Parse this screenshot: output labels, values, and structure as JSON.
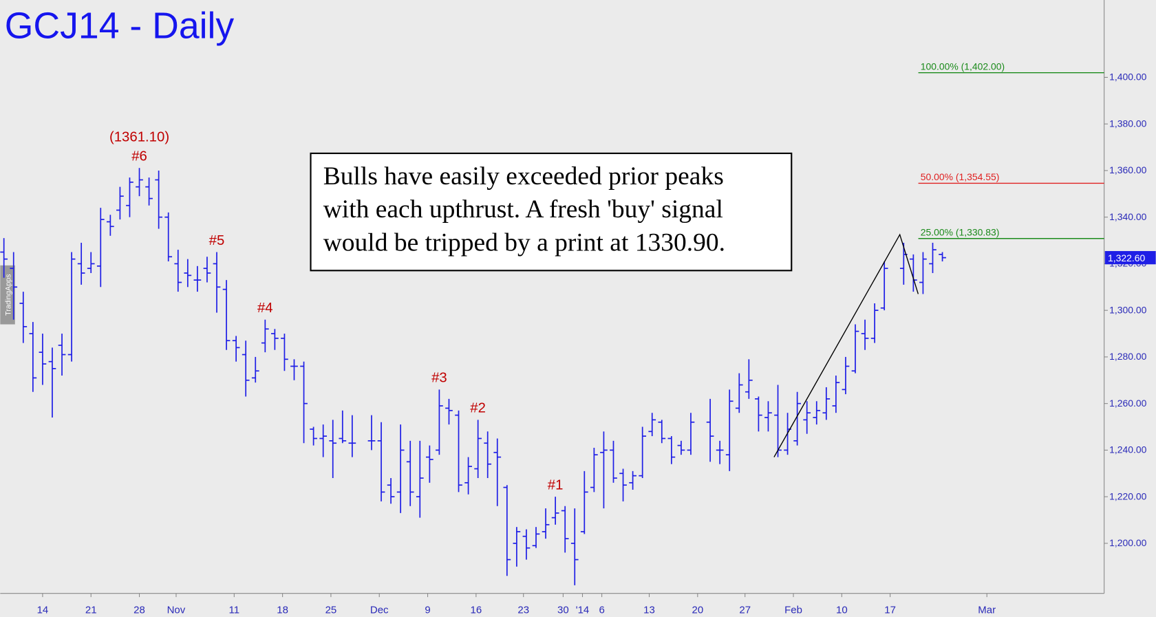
{
  "chart_data": {
    "type": "ohlc",
    "title": "GCJ14 - Daily",
    "watermark": "TradingApps",
    "x": [
      0,
      1,
      2,
      3,
      4,
      5,
      6,
      7,
      8,
      9,
      10,
      11,
      12,
      13,
      14,
      15,
      16,
      17,
      18,
      19,
      20,
      21,
      22,
      23,
      24,
      25,
      26,
      27,
      28,
      29,
      30,
      31,
      32,
      33,
      34,
      35,
      36,
      38,
      39,
      40,
      41,
      42,
      43,
      44,
      45,
      46,
      47,
      48,
      49,
      50,
      51,
      52,
      53,
      54,
      55,
      56,
      57,
      58,
      59,
      60,
      61,
      62,
      63,
      64,
      65,
      66,
      67,
      68,
      69,
      70,
      71,
      73,
      74,
      75,
      76,
      77,
      78,
      79,
      80,
      81,
      82,
      83,
      84,
      85,
      86,
      87,
      88,
      89,
      90,
      91,
      93,
      94,
      95,
      96,
      97
    ],
    "open": [
      1325,
      1318,
      1303,
      1290,
      1282,
      1278,
      1285,
      1281,
      1320,
      1318,
      1319,
      1338,
      1343,
      1345,
      1353,
      1353,
      1356,
      1340,
      1320,
      1316,
      1313,
      1318,
      1320,
      1309,
      1287,
      1281,
      1271,
      1286,
      1290,
      1288,
      1276,
      1276,
      1249,
      1245,
      1244,
      1245,
      1243,
      1244,
      1244,
      1225,
      1222,
      1235,
      1220,
      1237,
      1240,
      1258,
      1255,
      1226,
      1232,
      1243,
      1239,
      1224,
      1200,
      1203,
      1199,
      1205,
      1211,
      1214,
      1200,
      1205,
      1224,
      1239,
      1240,
      1230,
      1226,
      1229,
      1248,
      1252,
      1245,
      1242,
      1240,
      1252,
      1240,
      1238,
      1258,
      1265,
      1262,
      1254,
      1255,
      1240,
      1244,
      1253,
      1254,
      1256,
      1259,
      1266,
      1274,
      1290,
      1288,
      1301,
      1318,
      1322,
      1312,
      1320,
      1324
    ],
    "high": [
      1331,
      1325,
      1308,
      1295,
      1290,
      1284,
      1290,
      1325,
      1329,
      1325,
      1344,
      1341,
      1353,
      1357,
      1361.1,
      1357,
      1360,
      1342,
      1326,
      1322,
      1319,
      1323,
      1325,
      1313,
      1289,
      1287,
      1280,
      1296,
      1292,
      1290,
      1279,
      1278,
      1250,
      1251,
      1253,
      1257,
      1255,
      1255,
      1252,
      1228,
      1251,
      1244,
      1244,
      1242,
      1266,
      1262,
      1257,
      1237,
      1253,
      1248,
      1245,
      1225,
      1207,
      1206,
      1207,
      1215,
      1220,
      1216,
      1215,
      1231,
      1241,
      1248,
      1244,
      1232,
      1231,
      1250,
      1256,
      1253,
      1246,
      1244,
      1256,
      1262,
      1244,
      1266,
      1273,
      1279,
      1263,
      1261,
      1268,
      1256,
      1265,
      1261,
      1261,
      1267,
      1272,
      1280,
      1294,
      1296,
      1303,
      1321,
      1329,
      1324,
      1325,
      1329,
      1325
    ],
    "low": [
      1314,
      1296,
      1286,
      1265,
      1268,
      1254,
      1272,
      1278,
      1311,
      1316,
      1310,
      1332,
      1339,
      1340,
      1349,
      1345,
      1335,
      1321,
      1308,
      1310,
      1308,
      1312,
      1299,
      1283,
      1278,
      1263,
      1269,
      1282,
      1283,
      1274,
      1270,
      1243,
      1242,
      1237,
      1228,
      1243,
      1237,
      1240,
      1218,
      1217,
      1213,
      1216,
      1211,
      1226,
      1238,
      1251,
      1222,
      1221,
      1228,
      1228,
      1216,
      1186,
      1190,
      1193,
      1198,
      1202,
      1208,
      1196,
      1182,
      1204,
      1222,
      1215,
      1226,
      1218,
      1223,
      1228,
      1246,
      1243,
      1234,
      1238,
      1238,
      1235,
      1234,
      1231,
      1256,
      1262,
      1248,
      1248,
      1237,
      1238,
      1242,
      1247,
      1251,
      1253,
      1256,
      1264,
      1273,
      1283,
      1286,
      1300,
      1311,
      1308,
      1307,
      1316,
      1321
    ],
    "close": [
      1322,
      1310,
      1293,
      1271,
      1277,
      1275,
      1281,
      1322,
      1316,
      1320,
      1339,
      1336,
      1349,
      1355,
      1356,
      1348,
      1340,
      1323,
      1312,
      1315,
      1313,
      1316,
      1310,
      1287,
      1284,
      1270,
      1274,
      1292,
      1288,
      1279,
      1276,
      1260,
      1245,
      1246,
      1243,
      1244,
      1243,
      1244,
      1222,
      1220,
      1240,
      1222,
      1228,
      1236,
      1259,
      1257,
      1225,
      1233,
      1245,
      1234,
      1237,
      1193,
      1205,
      1198,
      1204,
      1208,
      1213,
      1202,
      1193,
      1222,
      1238,
      1240,
      1228,
      1225,
      1229,
      1246,
      1253,
      1245,
      1237,
      1240,
      1252,
      1246,
      1240,
      1261,
      1268,
      1270,
      1255,
      1256,
      1240,
      1249,
      1260,
      1256,
      1257,
      1262,
      1269,
      1276,
      1291,
      1288,
      1300,
      1318,
      1324,
      1313,
      1322,
      1326,
      1322.6
    ],
    "color": "#1f1fe6",
    "xlim": [
      -0.38,
      113.72
    ],
    "ylim": [
      1178.5,
      1433.2
    ],
    "xticks": [
      {
        "value": 4,
        "label": "14"
      },
      {
        "value": 9,
        "label": "21"
      },
      {
        "value": 14,
        "label": "28"
      },
      {
        "value": 17.8,
        "label": "Nov"
      },
      {
        "value": 23.8,
        "label": "11"
      },
      {
        "value": 28.8,
        "label": "18"
      },
      {
        "value": 33.8,
        "label": "25"
      },
      {
        "value": 38.8,
        "label": "Dec"
      },
      {
        "value": 43.8,
        "label": "9"
      },
      {
        "value": 48.8,
        "label": "16"
      },
      {
        "value": 53.7,
        "label": "23"
      },
      {
        "value": 57.8,
        "label": "30"
      },
      {
        "value": 59.8,
        "label": "'14"
      },
      {
        "value": 61.8,
        "label": "6"
      },
      {
        "value": 66.7,
        "label": "13"
      },
      {
        "value": 71.7,
        "label": "20"
      },
      {
        "value": 76.6,
        "label": "27"
      },
      {
        "value": 81.6,
        "label": "Feb"
      },
      {
        "value": 86.6,
        "label": "10"
      },
      {
        "value": 91.6,
        "label": "17"
      },
      {
        "value": 101.6,
        "label": "Mar"
      }
    ],
    "yticks": [
      {
        "value": 1200,
        "label": "1,200.00"
      },
      {
        "value": 1220,
        "label": "1,220.00"
      },
      {
        "value": 1240,
        "label": "1,240.00"
      },
      {
        "value": 1260,
        "label": "1,260.00"
      },
      {
        "value": 1280,
        "label": "1,280.00"
      },
      {
        "value": 1300,
        "label": "1,300.00"
      },
      {
        "value": 1320,
        "label": "1,320.00"
      },
      {
        "value": 1340,
        "label": "1,340.00"
      },
      {
        "value": 1360,
        "label": "1,360.00"
      },
      {
        "value": 1380,
        "label": "1,380.00"
      },
      {
        "value": 1400,
        "label": "1,400.00"
      }
    ],
    "last": {
      "value": 1322.6,
      "label": "1,322.60"
    },
    "annotations": [
      {
        "x": 14,
        "label": "#6",
        "note": "(1361.10)"
      },
      {
        "x": 22,
        "label": "#5"
      },
      {
        "x": 27,
        "label": "#4"
      },
      {
        "x": 45,
        "label": "#3"
      },
      {
        "x": 49,
        "label": "#2"
      },
      {
        "x": 57,
        "label": "#1"
      }
    ],
    "fib_levels": [
      {
        "label": "100.00% (1,402.00)",
        "value": 1402,
        "color": "#1a8a1a"
      },
      {
        "label": "50.00% (1,354.55)",
        "value": 1354.55,
        "color": "#e02020"
      },
      {
        "label": "25.00% (1,330.83)",
        "value": 1330.83,
        "color": "#1a8a1a"
      }
    ],
    "pattern": {
      "x": [
        79.6,
        92.6,
        94.5
      ],
      "y": [
        1237,
        1332.5,
        1307
      ],
      "color": "#000000"
    },
    "commentary": [
      "Bulls have easily exceeded prior peaks",
      "with each upthrust. A fresh 'buy' signal",
      "would be tripped by a print at 1330.90."
    ]
  }
}
